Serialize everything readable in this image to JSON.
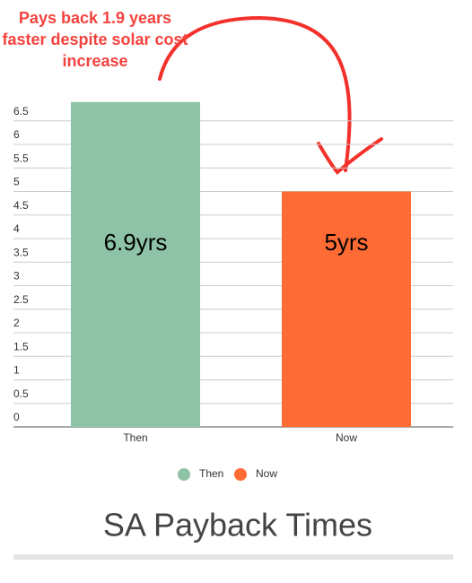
{
  "chart_data": {
    "type": "bar",
    "title": "SA Payback Times",
    "annotation": "Pays back 1.9 years faster despite solar cost increase",
    "categories": [
      "Then",
      "Now"
    ],
    "series": [
      {
        "name": "Then",
        "color": "#8ec3a7",
        "values": [
          6.9,
          null
        ],
        "value_labels": [
          "6.9yrs",
          null
        ]
      },
      {
        "name": "Now",
        "color": "#ff6b35",
        "values": [
          null,
          5
        ],
        "value_labels": [
          null,
          "5yrs"
        ]
      }
    ],
    "ylim": [
      0,
      7
    ],
    "yticks": [
      0,
      0.5,
      1,
      1.5,
      2,
      2.5,
      3,
      3.5,
      4,
      4.5,
      5,
      5.5,
      6,
      6.5
    ],
    "grid": true
  }
}
